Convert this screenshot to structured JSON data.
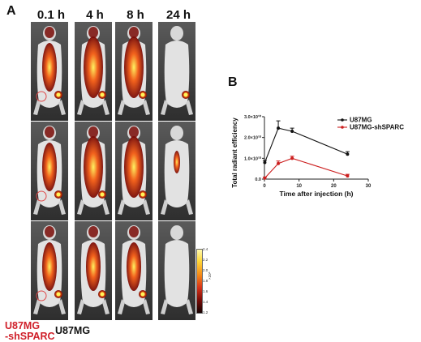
{
  "panel_a": {
    "letter": "A",
    "time_points": [
      "0.1 h",
      "4 h",
      "8 h",
      "24 h"
    ],
    "group_labels": {
      "knockdown_line1": "U87MG",
      "knockdown_line2": "-shSPARC",
      "control": "U87MG"
    },
    "colorbar": {
      "ticks": [
        "2.4",
        "2.2",
        "2.0",
        "1.8",
        "1.6",
        "1.4",
        "1.2"
      ],
      "unit": "×10⁸"
    },
    "colors": {
      "knockdown_label": "#d0202a",
      "control_label": "#111111",
      "signal_high": "#fff45a",
      "signal_mid": "#f25a12",
      "signal_low": "#7a0c07"
    }
  },
  "panel_b": {
    "letter": "B"
  },
  "chart_data": {
    "type": "line",
    "title": "",
    "xlabel": "Time after injection (h)",
    "ylabel": "Total radiant efficiency",
    "xlim": [
      0,
      30
    ],
    "ylim": [
      0,
      30000000000.0
    ],
    "x_ticks": [
      "0",
      "10",
      "20",
      "30"
    ],
    "y_ticks": [
      "0.0",
      "1.0×10¹⁰",
      "2.0×10¹⁰",
      "3.0×10¹⁰"
    ],
    "y_tick_values": [
      0,
      10000000000.0,
      20000000000.0,
      30000000000.0
    ],
    "x_tick_values": [
      0,
      10,
      20,
      30
    ],
    "legend_position": "top-right",
    "series": [
      {
        "name": "U87MG",
        "color": "#111111",
        "x": [
          0.1,
          4,
          8,
          24
        ],
        "values": [
          8000000000.0,
          24500000000.0,
          23000000000.0,
          12000000000.0
        ],
        "errors": [
          1000000000.0,
          3500000000.0,
          1500000000.0,
          1200000000.0
        ]
      },
      {
        "name": "U87MG-shSPARC",
        "color": "#cc1f1f",
        "x": [
          0.1,
          4,
          8,
          24
        ],
        "values": [
          500000000.0,
          7500000000.0,
          10000000000.0,
          1500000000.0
        ],
        "errors": [
          500000000.0,
          1200000000.0,
          1000000000.0,
          800000000.0
        ]
      }
    ]
  }
}
